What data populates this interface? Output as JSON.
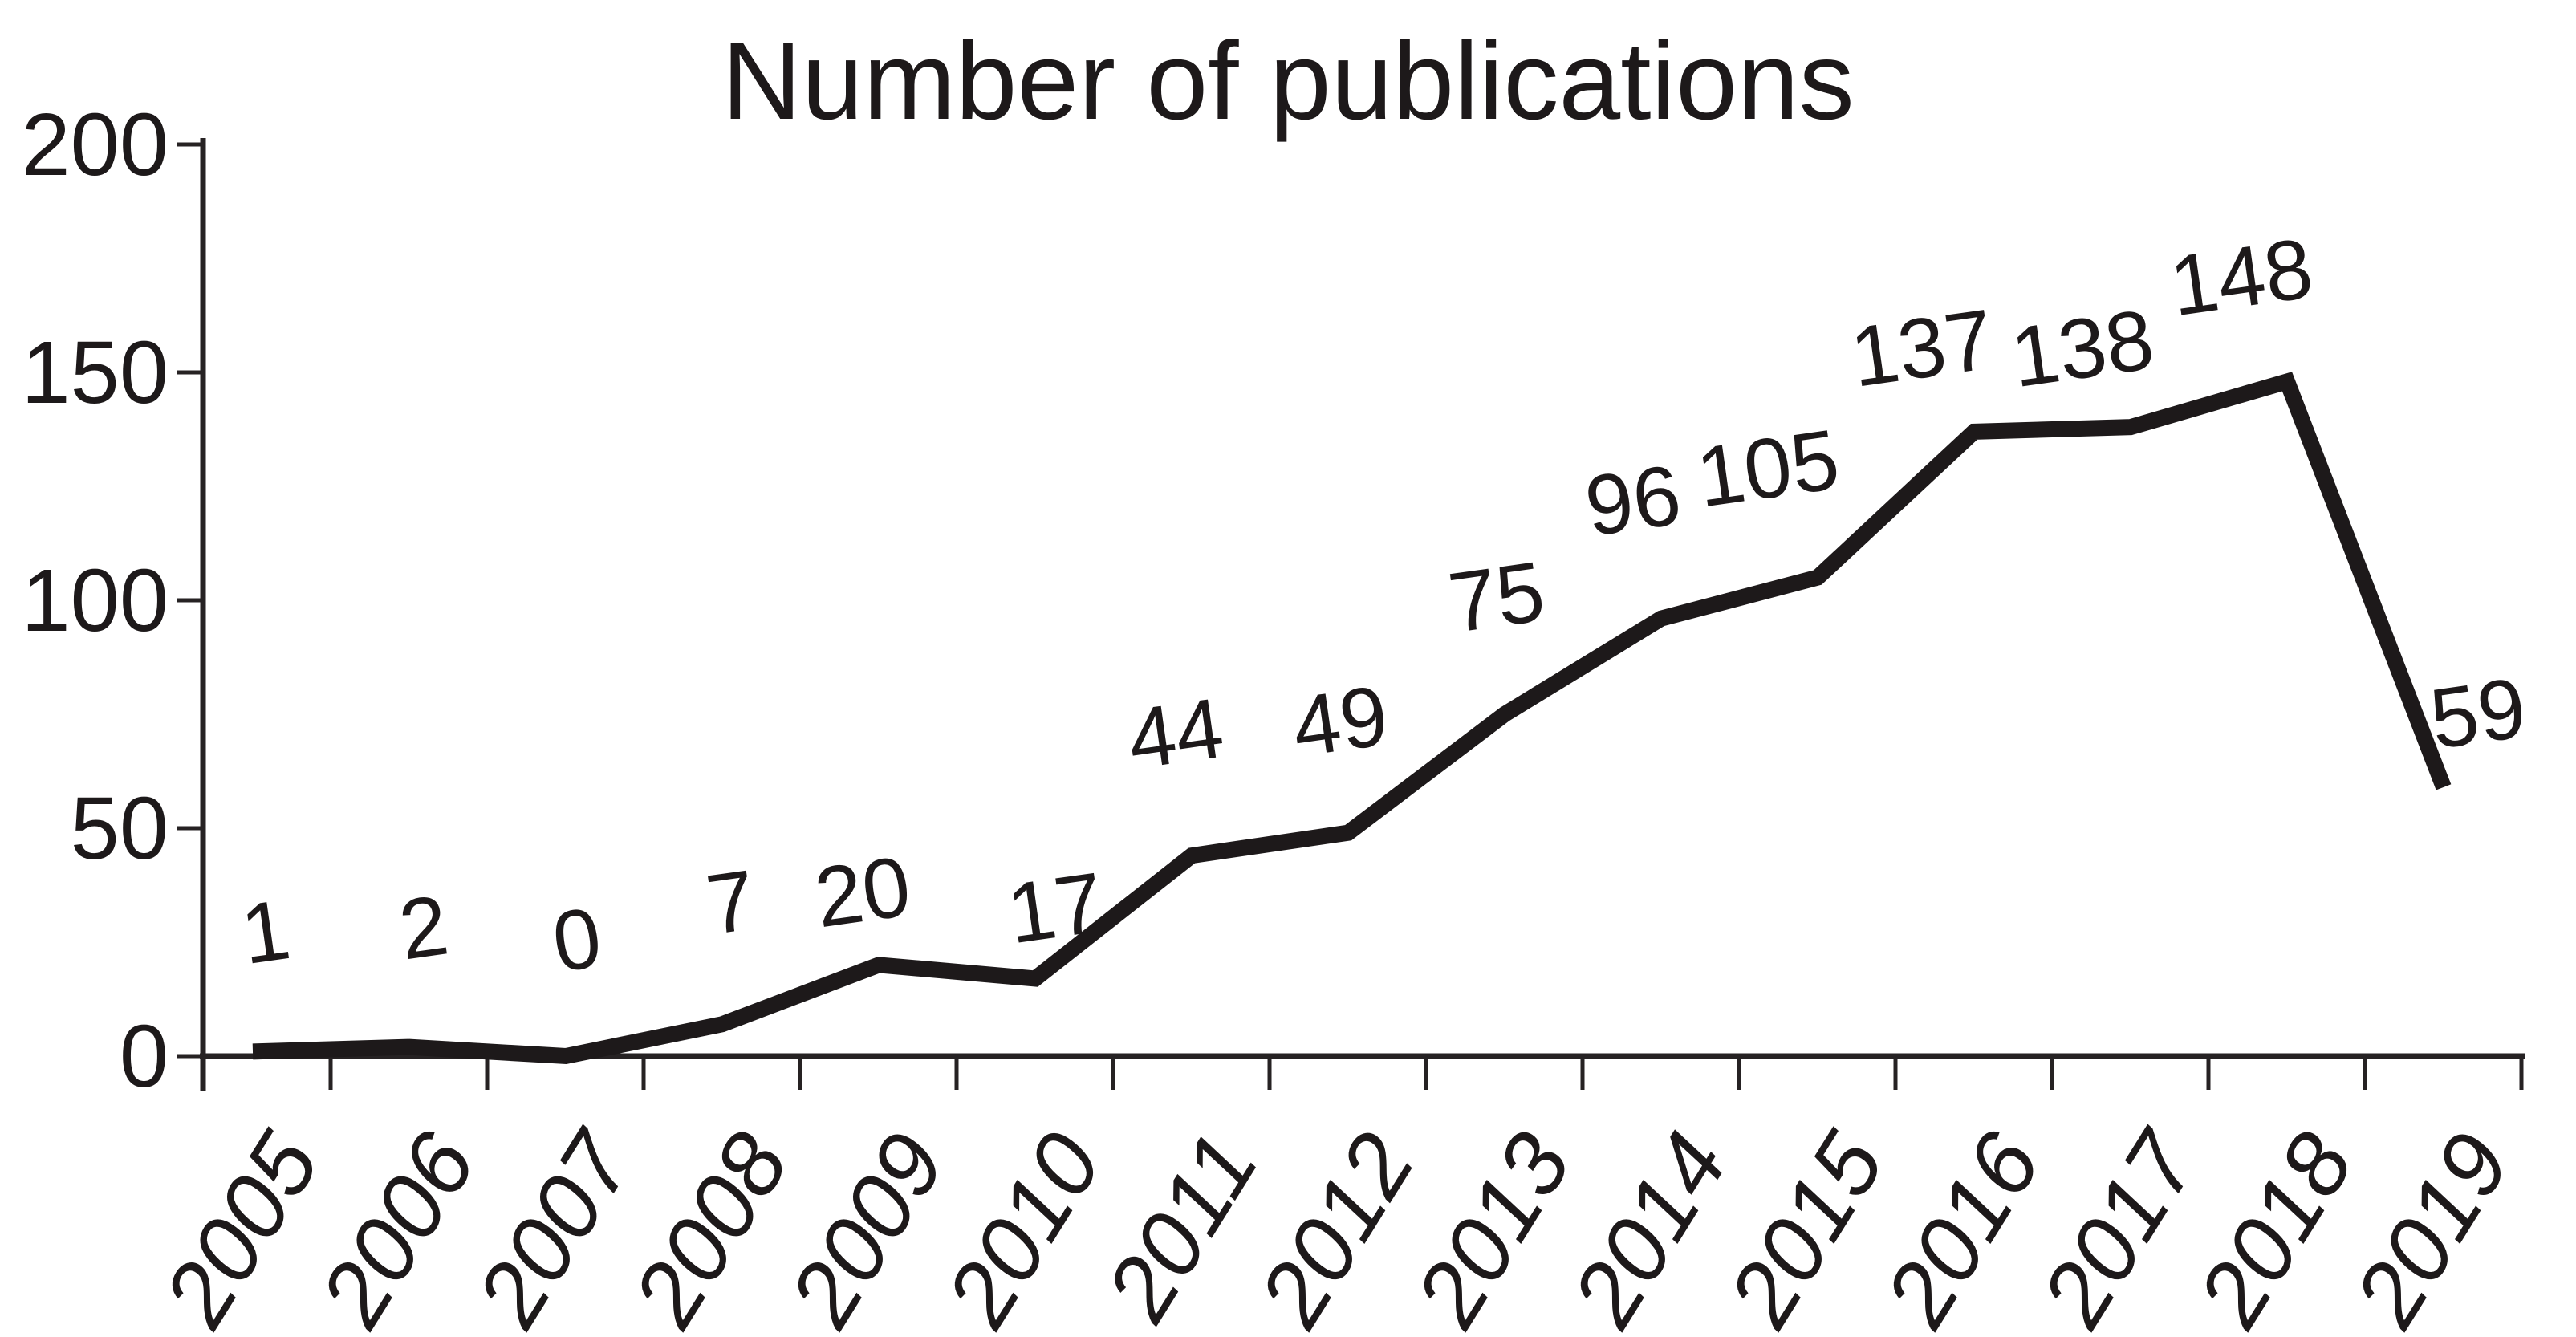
{
  "chart_data": {
    "type": "line",
    "title": "Number of publications",
    "categories": [
      "2005",
      "2006",
      "2007",
      "2008",
      "2009",
      "2010",
      "2011",
      "2012",
      "2013",
      "2014",
      "2015",
      "2016",
      "2017",
      "2018",
      "2019"
    ],
    "series": [
      {
        "name": "Number of publications",
        "values": [
          1,
          2,
          0,
          7,
          20,
          17,
          44,
          49,
          75,
          96,
          105,
          137,
          138,
          148,
          59
        ]
      }
    ],
    "data_labels": [
      "1",
      "2",
      "0",
      "7",
      "20",
      "17",
      "44",
      "49",
      "75",
      "96",
      "105",
      "137",
      "138",
      "148",
      "59"
    ],
    "xlabel": "",
    "ylabel": "",
    "ylim": [
      0,
      200
    ],
    "yticks": [
      "0",
      "50",
      "100",
      "150",
      "200"
    ],
    "grid": false,
    "legend": "none",
    "colors": {
      "line": "#1d191a",
      "axis": "#262223",
      "text": "#1d191a",
      "background": "#ffffff"
    }
  }
}
